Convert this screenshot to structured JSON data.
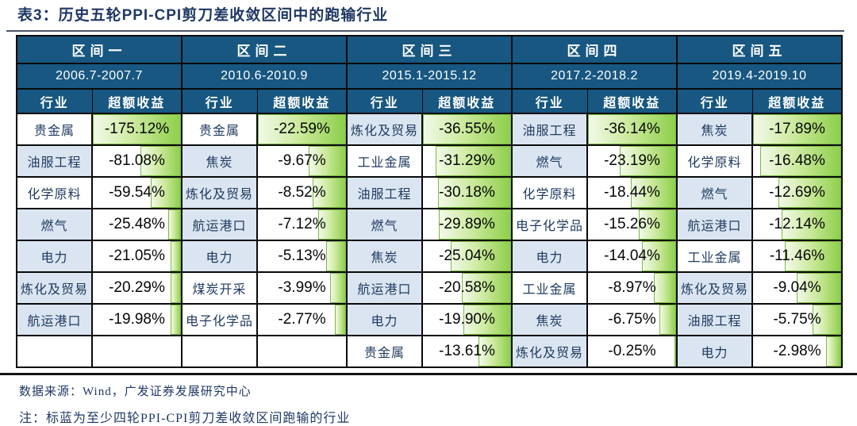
{
  "title": "表3：历史五轮PPI-CPI剪刀差收敛区间中的跑输行业",
  "columns": {
    "industry": "行业",
    "excess_return": "超额收益"
  },
  "sections": [
    {
      "name": "区间一",
      "period": "2006.7-2007.7",
      "rows": [
        {
          "industry": "贵金属",
          "value": "-175.12%",
          "pct": 100,
          "highlight": false
        },
        {
          "industry": "油服工程",
          "value": "-81.08%",
          "pct": 46.3,
          "highlight": true
        },
        {
          "industry": "化学原料",
          "value": "-59.54%",
          "pct": 34.0,
          "highlight": false
        },
        {
          "industry": "燃气",
          "value": "-25.48%",
          "pct": 14.5,
          "highlight": true
        },
        {
          "industry": "电力",
          "value": "-21.05%",
          "pct": 12.0,
          "highlight": true
        },
        {
          "industry": "炼化及贸易",
          "value": "-20.29%",
          "pct": 11.6,
          "highlight": true
        },
        {
          "industry": "航运港口",
          "value": "-19.98%",
          "pct": 11.4,
          "highlight": true
        },
        {
          "industry": "",
          "value": "",
          "pct": 0,
          "highlight": false
        }
      ]
    },
    {
      "name": "区间二",
      "period": "2010.6-2010.9",
      "rows": [
        {
          "industry": "贵金属",
          "value": "-22.59%",
          "pct": 100,
          "highlight": false
        },
        {
          "industry": "焦炭",
          "value": "-9.67%",
          "pct": 42.8,
          "highlight": true
        },
        {
          "industry": "炼化及贸易",
          "value": "-8.52%",
          "pct": 37.7,
          "highlight": true
        },
        {
          "industry": "航运港口",
          "value": "-7.12%",
          "pct": 31.5,
          "highlight": true
        },
        {
          "industry": "电力",
          "value": "-5.13%",
          "pct": 22.7,
          "highlight": true
        },
        {
          "industry": "煤炭开采",
          "value": "-3.99%",
          "pct": 17.7,
          "highlight": false
        },
        {
          "industry": "电子化学品",
          "value": "-2.77%",
          "pct": 12.3,
          "highlight": false
        },
        {
          "industry": "",
          "value": "",
          "pct": 0,
          "highlight": false
        }
      ]
    },
    {
      "name": "区间三",
      "period": "2015.1-2015.12",
      "rows": [
        {
          "industry": "炼化及贸易",
          "value": "-36.55%",
          "pct": 100,
          "highlight": true
        },
        {
          "industry": "工业金属",
          "value": "-31.29%",
          "pct": 85.6,
          "highlight": false
        },
        {
          "industry": "油服工程",
          "value": "-30.18%",
          "pct": 82.6,
          "highlight": true
        },
        {
          "industry": "燃气",
          "value": "-29.89%",
          "pct": 81.8,
          "highlight": true
        },
        {
          "industry": "焦炭",
          "value": "-25.04%",
          "pct": 68.5,
          "highlight": true
        },
        {
          "industry": "航运港口",
          "value": "-20.58%",
          "pct": 56.3,
          "highlight": true
        },
        {
          "industry": "电力",
          "value": "-19.90%",
          "pct": 54.4,
          "highlight": true
        },
        {
          "industry": "贵金属",
          "value": "-13.61%",
          "pct": 37.2,
          "highlight": false
        }
      ]
    },
    {
      "name": "区间四",
      "period": "2017.2-2018.2",
      "rows": [
        {
          "industry": "油服工程",
          "value": "-36.14%",
          "pct": 100,
          "highlight": true
        },
        {
          "industry": "燃气",
          "value": "-23.19%",
          "pct": 64.2,
          "highlight": true
        },
        {
          "industry": "化学原料",
          "value": "-18.44%",
          "pct": 51.0,
          "highlight": false
        },
        {
          "industry": "电子化学品",
          "value": "-15.26%",
          "pct": 42.2,
          "highlight": false
        },
        {
          "industry": "电力",
          "value": "-14.04%",
          "pct": 38.8,
          "highlight": true
        },
        {
          "industry": "工业金属",
          "value": "-8.97%",
          "pct": 24.8,
          "highlight": false
        },
        {
          "industry": "焦炭",
          "value": "-6.75%",
          "pct": 18.7,
          "highlight": true
        },
        {
          "industry": "炼化及贸易",
          "value": "-0.25%",
          "pct": 1.2,
          "highlight": true
        }
      ]
    },
    {
      "name": "区间五",
      "period": "2019.4-2019.10",
      "rows": [
        {
          "industry": "焦炭",
          "value": "-17.89%",
          "pct": 100,
          "highlight": true
        },
        {
          "industry": "化学原料",
          "value": "-16.48%",
          "pct": 92.1,
          "highlight": false
        },
        {
          "industry": "燃气",
          "value": "-12.69%",
          "pct": 70.9,
          "highlight": true
        },
        {
          "industry": "航运港口",
          "value": "-12.14%",
          "pct": 67.9,
          "highlight": true
        },
        {
          "industry": "工业金属",
          "value": "-11.46%",
          "pct": 64.1,
          "highlight": false
        },
        {
          "industry": "炼化及贸易",
          "value": "-9.04%",
          "pct": 50.5,
          "highlight": true
        },
        {
          "industry": "油服工程",
          "value": "-5.75%",
          "pct": 32.1,
          "highlight": true
        },
        {
          "industry": "电力",
          "value": "-2.98%",
          "pct": 16.7,
          "highlight": true
        }
      ]
    }
  ],
  "footer": {
    "source": "数据来源：Wind，广发证券发展研究中心",
    "note": "注：标蓝为至少四轮PPI-CPI剪刀差收敛区间跑输的行业"
  },
  "colors": {
    "header_bg": "#175781",
    "highlight_row_bg": "#dbe5f1",
    "bar_green": "#8ecf4b",
    "bar_border": "#79bb40",
    "text_navy": "#1f3864",
    "grid_border": "#0a0a0a"
  },
  "chart_data": {
    "type": "table",
    "title": "表3：历史五轮PPI-CPI剪刀差收敛区间中的跑输行业",
    "columns": [
      "行业",
      "超额收益"
    ],
    "sections": [
      {
        "name": "区间一",
        "period": "2006.7-2007.7",
        "rows": [
          [
            "贵金属",
            -175.12
          ],
          [
            "油服工程",
            -81.08
          ],
          [
            "化学原料",
            -59.54
          ],
          [
            "燃气",
            -25.48
          ],
          [
            "电力",
            -21.05
          ],
          [
            "炼化及贸易",
            -20.29
          ],
          [
            "航运港口",
            -19.98
          ]
        ]
      },
      {
        "name": "区间二",
        "period": "2010.6-2010.9",
        "rows": [
          [
            "贵金属",
            -22.59
          ],
          [
            "焦炭",
            -9.67
          ],
          [
            "炼化及贸易",
            -8.52
          ],
          [
            "航运港口",
            -7.12
          ],
          [
            "电力",
            -5.13
          ],
          [
            "煤炭开采",
            -3.99
          ],
          [
            "电子化学品",
            -2.77
          ]
        ]
      },
      {
        "name": "区间三",
        "period": "2015.1-2015.12",
        "rows": [
          [
            "炼化及贸易",
            -36.55
          ],
          [
            "工业金属",
            -31.29
          ],
          [
            "油服工程",
            -30.18
          ],
          [
            "燃气",
            -29.89
          ],
          [
            "焦炭",
            -25.04
          ],
          [
            "航运港口",
            -20.58
          ],
          [
            "电力",
            -19.9
          ],
          [
            "贵金属",
            -13.61
          ]
        ]
      },
      {
        "name": "区间四",
        "period": "2017.2-2018.2",
        "rows": [
          [
            "油服工程",
            -36.14
          ],
          [
            "燃气",
            -23.19
          ],
          [
            "化学原料",
            -18.44
          ],
          [
            "电子化学品",
            -15.26
          ],
          [
            "电力",
            -14.04
          ],
          [
            "工业金属",
            -8.97
          ],
          [
            "焦炭",
            -6.75
          ],
          [
            "炼化及贸易",
            -0.25
          ]
        ]
      },
      {
        "name": "区间五",
        "period": "2019.4-2019.10",
        "rows": [
          [
            "焦炭",
            -17.89
          ],
          [
            "化学原料",
            -16.48
          ],
          [
            "燃气",
            -12.69
          ],
          [
            "航运港口",
            -12.14
          ],
          [
            "工业金属",
            -11.46
          ],
          [
            "炼化及贸易",
            -9.04
          ],
          [
            "油服工程",
            -5.75
          ],
          [
            "电力",
            -2.98
          ]
        ]
      }
    ],
    "value_unit": "%",
    "bars": "green data bars, right-aligned, width proportional to |excess return| within each section",
    "highlighted_industries": [
      "油服工程",
      "燃气",
      "电力",
      "炼化及贸易",
      "航运港口",
      "焦炭"
    ],
    "highlight_rule": "标蓝为至少四轮PPI-CPI剪刀差收敛区间跑输的行业",
    "source": "数据来源：Wind，广发证券发展研究中心"
  }
}
